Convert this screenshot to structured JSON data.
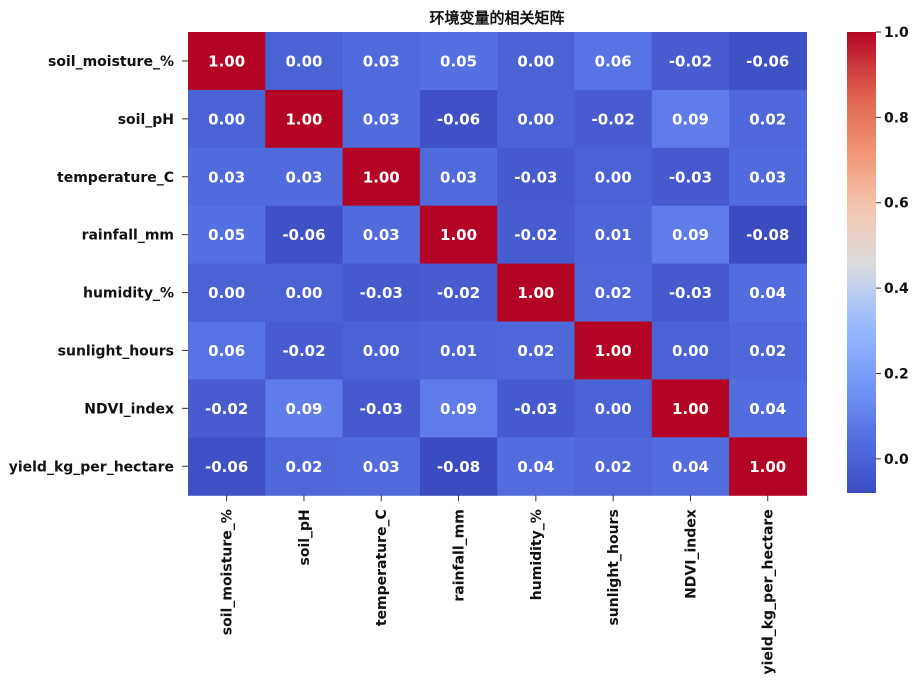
{
  "chart_data": {
    "type": "heatmap",
    "title": "环境变量的相关矩阵",
    "row_labels": [
      "soil_moisture_%",
      "soil_pH",
      "temperature_C",
      "rainfall_mm",
      "humidity_%",
      "sunlight_hours",
      "NDVI_index",
      "yield_kg_per_hectare"
    ],
    "col_labels": [
      "soil_moisture_%",
      "soil_pH",
      "temperature_C",
      "rainfall_mm",
      "humidity_%",
      "sunlight_hours",
      "NDVI_index",
      "yield_kg_per_hectare"
    ],
    "values": [
      [
        1.0,
        0.0,
        0.03,
        0.05,
        0.0,
        0.06,
        -0.02,
        -0.06
      ],
      [
        0.0,
        1.0,
        0.03,
        -0.06,
        0.0,
        -0.02,
        0.09,
        0.02
      ],
      [
        0.03,
        0.03,
        1.0,
        0.03,
        -0.03,
        0.0,
        -0.03,
        0.03
      ],
      [
        0.05,
        -0.06,
        0.03,
        1.0,
        -0.02,
        0.01,
        0.09,
        -0.08
      ],
      [
        0.0,
        0.0,
        -0.03,
        -0.02,
        1.0,
        0.02,
        -0.03,
        0.04
      ],
      [
        0.06,
        -0.02,
        0.0,
        0.01,
        0.02,
        1.0,
        0.0,
        0.02
      ],
      [
        -0.02,
        0.09,
        -0.03,
        0.09,
        -0.03,
        0.0,
        1.0,
        0.04
      ],
      [
        -0.06,
        0.02,
        0.03,
        -0.08,
        0.04,
        0.02,
        0.04,
        1.0
      ]
    ],
    "annotation_format": "0.00",
    "colormap": "coolwarm",
    "vmin": -0.08,
    "vmax": 1.0,
    "colorbar_ticks": [
      0.0,
      0.2,
      0.4,
      0.6,
      0.8,
      1.0
    ],
    "colorbar_tick_labels": [
      "0.0",
      "0.2",
      "0.4",
      "0.6",
      "0.8",
      "1.0"
    ]
  }
}
